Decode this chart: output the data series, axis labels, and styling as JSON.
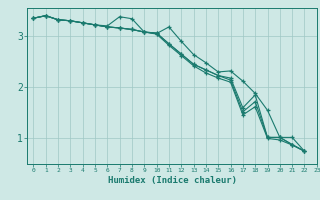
{
  "title": "",
  "xlabel": "Humidex (Indice chaleur)",
  "ylabel": "",
  "xlim": [
    -0.5,
    23
  ],
  "ylim": [
    0.5,
    3.55
  ],
  "yticks": [
    1,
    2,
    3
  ],
  "xticks": [
    0,
    1,
    2,
    3,
    4,
    5,
    6,
    7,
    8,
    9,
    10,
    11,
    12,
    13,
    14,
    15,
    16,
    17,
    18,
    19,
    20,
    21,
    22,
    23
  ],
  "bg_color": "#cee8e5",
  "grid_color": "#a0c8c4",
  "line_color": "#1a7a6e",
  "lines": [
    [
      3.35,
      3.4,
      3.32,
      3.3,
      3.26,
      3.22,
      3.18,
      3.16,
      3.13,
      3.08,
      3.05,
      3.18,
      2.9,
      2.64,
      2.48,
      2.3,
      2.32,
      2.12,
      1.88,
      1.55,
      1.02,
      1.02,
      0.75
    ],
    [
      3.35,
      3.4,
      3.32,
      3.3,
      3.26,
      3.22,
      3.18,
      3.16,
      3.13,
      3.08,
      3.06,
      2.85,
      2.65,
      2.45,
      2.34,
      2.23,
      2.14,
      1.52,
      1.72,
      1.02,
      1.02,
      0.88,
      0.75
    ],
    [
      3.35,
      3.4,
      3.32,
      3.3,
      3.26,
      3.22,
      3.2,
      3.38,
      3.34,
      3.08,
      3.06,
      2.85,
      2.65,
      2.45,
      2.34,
      2.23,
      2.18,
      1.6,
      1.85,
      1.02,
      1.02,
      0.88,
      0.75
    ],
    [
      3.35,
      3.4,
      3.32,
      3.3,
      3.26,
      3.22,
      3.18,
      3.16,
      3.13,
      3.08,
      3.04,
      2.82,
      2.62,
      2.42,
      2.28,
      2.18,
      2.1,
      1.46,
      1.62,
      1.0,
      0.97,
      0.87,
      0.75
    ]
  ]
}
